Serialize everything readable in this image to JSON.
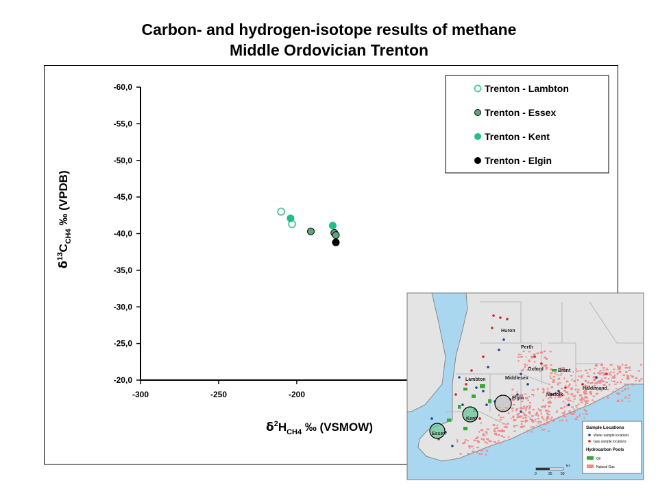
{
  "chart_data": {
    "type": "scatter",
    "title": "Carbon- and hydrogen-isotope results of methane",
    "subtitle": "Middle Ordovician Trenton",
    "xlabel": "δ²H_CH4 ‰ (VSMOW)",
    "ylabel": "δ¹³C_CH4 ‰ (VPDB)",
    "xlim": [
      -300,
      -100
    ],
    "ylim": [
      -20,
      -60
    ],
    "y_reversed": true,
    "x_ticks": [
      "-300",
      "-250",
      "-200"
    ],
    "y_ticks": [
      "-60,0",
      "-55,0",
      "-50,0",
      "-45,0",
      "-40,0",
      "-35,0",
      "-30,0",
      "-25,0",
      "-20,0"
    ],
    "legend_position": "top-right",
    "grid": false,
    "series": [
      {
        "name": "Trenton - Lambton",
        "marker": "open-circle",
        "color": "#5cc7a2",
        "points": [
          {
            "x": -210,
            "y": -43.0
          },
          {
            "x": -203,
            "y": -41.3
          }
        ]
      },
      {
        "name": "Trenton - Essex",
        "marker": "filled-circle-outlined",
        "color": "#5aa882",
        "points": [
          {
            "x": -191,
            "y": -40.3
          },
          {
            "x": -176,
            "y": -40.1
          },
          {
            "x": -175,
            "y": -39.8
          }
        ]
      },
      {
        "name": "Trenton - Kent",
        "marker": "filled-circle",
        "color": "#1dbf8c",
        "points": [
          {
            "x": -204,
            "y": -42.1
          },
          {
            "x": -177,
            "y": -41.1
          }
        ]
      },
      {
        "name": "Trenton - Elgin",
        "marker": "filled-circle",
        "color": "#000000",
        "points": [
          {
            "x": -175,
            "y": -38.8
          }
        ]
      }
    ]
  },
  "map_inset": {
    "region_labels": [
      "Huron",
      "Perth",
      "Oxford",
      "Brant",
      "Lambton",
      "Middlesex",
      "Elgin",
      "Norfolk",
      "Haldimand",
      "Kent",
      "Essex"
    ],
    "legend": {
      "title": "Sample Locations",
      "items": [
        "Water sample locations",
        "Gas sample locations"
      ],
      "subtitle": "Hydrocarbon Pools",
      "pools": [
        "Oil",
        "Natural Gas"
      ]
    },
    "scale": {
      "ticks": [
        "0",
        "25",
        "50"
      ],
      "unit": "km"
    },
    "colors": {
      "water": "#a9d7f0",
      "land": "#e4e4e4",
      "gas_pool": "#f08a8a",
      "oil_pool": "#3aa63a",
      "water_sample": "#1f3f9e",
      "gas_sample": "#d42020"
    }
  }
}
